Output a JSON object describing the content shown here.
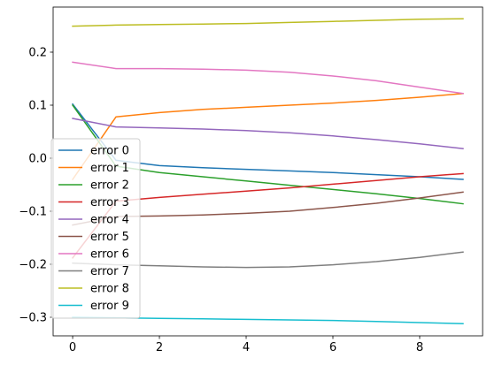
{
  "chart_data": {
    "type": "line",
    "title": "",
    "xlabel": "",
    "ylabel": "",
    "xlim": [
      -0.45,
      9.45
    ],
    "ylim": [
      -0.335,
      0.285
    ],
    "xticks": [
      0,
      2,
      4,
      6,
      8
    ],
    "xtick_labels": [
      "0",
      "2",
      "4",
      "6",
      "8"
    ],
    "yticks": [
      -0.3,
      -0.2,
      -0.1,
      0.0,
      0.1,
      0.2
    ],
    "ytick_labels": [
      "−0.3",
      "−0.2",
      "−0.1",
      "0.0",
      "0.1",
      "0.2"
    ],
    "grid": false,
    "legend_position": "lower-left",
    "x": [
      0,
      1,
      2,
      3,
      4,
      5,
      6,
      7,
      8,
      9
    ],
    "series": [
      {
        "name": "error 0",
        "color": "#1f77b4",
        "values": [
          0.102,
          -0.004,
          -0.014,
          -0.018,
          -0.021,
          -0.024,
          -0.027,
          -0.031,
          -0.035,
          -0.04
        ]
      },
      {
        "name": "error 1",
        "color": "#ff7f0e",
        "values": [
          -0.04,
          0.078,
          0.086,
          0.092,
          0.096,
          0.1,
          0.104,
          0.109,
          0.115,
          0.122
        ]
      },
      {
        "name": "error 2",
        "color": "#2ca02c",
        "values": [
          0.1,
          -0.015,
          -0.027,
          -0.035,
          -0.043,
          -0.051,
          -0.059,
          -0.067,
          -0.076,
          -0.086
        ]
      },
      {
        "name": "error 3",
        "color": "#d62728",
        "values": [
          -0.188,
          -0.081,
          -0.074,
          -0.068,
          -0.062,
          -0.056,
          -0.049,
          -0.042,
          -0.035,
          -0.029
        ]
      },
      {
        "name": "error 4",
        "color": "#9467bd",
        "values": [
          0.075,
          0.059,
          0.057,
          0.055,
          0.052,
          0.048,
          0.042,
          0.035,
          0.027,
          0.018
        ]
      },
      {
        "name": "error 5",
        "color": "#8c564b",
        "values": [
          -0.126,
          -0.11,
          -0.109,
          -0.107,
          -0.104,
          -0.1,
          -0.093,
          -0.085,
          -0.075,
          -0.064
        ]
      },
      {
        "name": "error 6",
        "color": "#e377c2",
        "values": [
          0.181,
          0.169,
          0.169,
          0.168,
          0.166,
          0.162,
          0.155,
          0.146,
          0.134,
          0.122
        ]
      },
      {
        "name": "error 7",
        "color": "#7f7f7f",
        "values": [
          -0.198,
          -0.201,
          -0.203,
          -0.205,
          -0.206,
          -0.205,
          -0.201,
          -0.195,
          -0.187,
          -0.177
        ]
      },
      {
        "name": "error 8",
        "color": "#bcbd22",
        "values": [
          0.249,
          0.251,
          0.252,
          0.253,
          0.254,
          0.256,
          0.258,
          0.26,
          0.262,
          0.263
        ]
      },
      {
        "name": "error 9",
        "color": "#17becf",
        "values": [
          -0.3,
          -0.301,
          -0.302,
          -0.303,
          -0.304,
          -0.305,
          -0.306,
          -0.308,
          -0.31,
          -0.312
        ]
      }
    ]
  }
}
